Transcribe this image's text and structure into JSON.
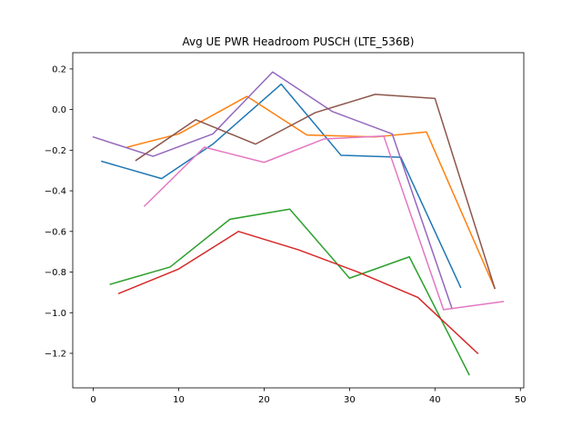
{
  "chart_data": {
    "type": "line",
    "title": "Avg UE PWR Headroom PUSCH (LTE_536B)",
    "xlabel": "",
    "ylabel": "",
    "xlim": [
      -2.4,
      50.4
    ],
    "ylim": [
      -1.37,
      0.28
    ],
    "x_ticks": [
      0,
      10,
      20,
      30,
      40,
      50
    ],
    "x_tick_labels": [
      "0",
      "10",
      "20",
      "30",
      "40",
      "50"
    ],
    "y_ticks": [
      0.2,
      0.0,
      -0.2,
      -0.4,
      -0.6,
      -0.8,
      -1.0,
      -1.2
    ],
    "y_tick_labels": [
      "0.2",
      "0.0",
      "−0.2",
      "−0.4",
      "−0.6",
      "−0.8",
      "−1.0",
      "−1.2"
    ],
    "grid": false,
    "legend": "none",
    "series": [
      {
        "color": "#1f77b4",
        "points": [
          [
            1,
            -0.255
          ],
          [
            8,
            -0.34
          ],
          [
            14,
            -0.17
          ],
          [
            22,
            0.125
          ],
          [
            29,
            -0.225
          ],
          [
            36,
            -0.235
          ],
          [
            43,
            -0.875
          ]
        ]
      },
      {
        "color": "#ff7f0e",
        "points": [
          [
            4,
            -0.185
          ],
          [
            10,
            -0.12
          ],
          [
            18,
            0.065
          ],
          [
            25,
            -0.125
          ],
          [
            33,
            -0.135
          ],
          [
            39,
            -0.11
          ],
          [
            47,
            -0.88
          ]
        ]
      },
      {
        "color": "#2ca02c",
        "points": [
          [
            2,
            -0.86
          ],
          [
            9,
            -0.775
          ],
          [
            16,
            -0.54
          ],
          [
            23,
            -0.49
          ],
          [
            30,
            -0.83
          ],
          [
            37,
            -0.725
          ],
          [
            44,
            -1.305
          ]
        ]
      },
      {
        "color": "#d62728",
        "points": [
          [
            3,
            -0.905
          ],
          [
            10,
            -0.785
          ],
          [
            17,
            -0.6
          ],
          [
            24,
            -0.69
          ],
          [
            31,
            -0.8
          ],
          [
            38,
            -0.925
          ],
          [
            45,
            -1.2
          ]
        ]
      },
      {
        "color": "#9467bd",
        "points": [
          [
            0,
            -0.135
          ],
          [
            7,
            -0.23
          ],
          [
            14,
            -0.12
          ],
          [
            21,
            0.185
          ],
          [
            28,
            -0.01
          ],
          [
            35,
            -0.12
          ],
          [
            42,
            -0.98
          ]
        ]
      },
      {
        "color": "#8c564b",
        "points": [
          [
            5,
            -0.25
          ],
          [
            12,
            -0.05
          ],
          [
            19,
            -0.17
          ],
          [
            26,
            -0.015
          ],
          [
            33,
            0.075
          ],
          [
            40,
            0.055
          ],
          [
            47,
            -0.88
          ]
        ]
      },
      {
        "color": "#e377c2",
        "points": [
          [
            6,
            -0.475
          ],
          [
            13,
            -0.185
          ],
          [
            20,
            -0.26
          ],
          [
            27,
            -0.145
          ],
          [
            34,
            -0.13
          ],
          [
            41,
            -0.985
          ],
          [
            48,
            -0.945
          ]
        ]
      }
    ]
  }
}
